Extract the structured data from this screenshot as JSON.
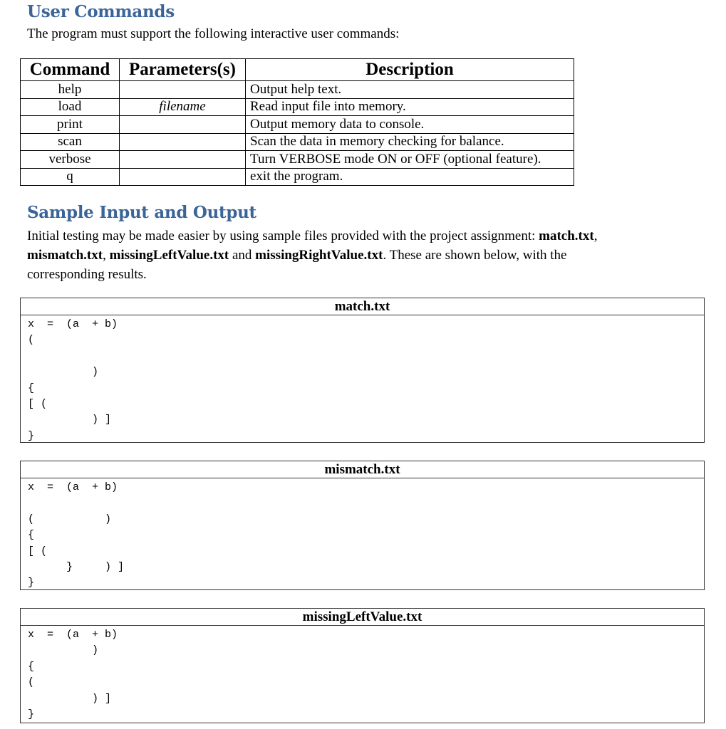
{
  "section1": {
    "heading": "User Commands",
    "intro": "The program must support the following interactive user commands:"
  },
  "table": {
    "headers": [
      "Command",
      "Parameters(s)",
      "Description"
    ],
    "rows": [
      {
        "command": "help",
        "param": "",
        "desc": "Output help text."
      },
      {
        "command": "load",
        "param": "filename",
        "desc": "Read input file into memory."
      },
      {
        "command": "print",
        "param": "",
        "desc": "Output memory data to console."
      },
      {
        "command": "scan",
        "param": "",
        "desc": "Scan the data in memory checking for balance."
      },
      {
        "command": "verbose",
        "param": "",
        "desc": "Turn VERBOSE mode ON or OFF (optional feature)."
      },
      {
        "command": "q",
        "param": "",
        "desc": "exit the program."
      }
    ]
  },
  "section2": {
    "heading": "Sample Input and Output",
    "p1": "Initial testing may be made easier by using sample files provided with the project assignment: ",
    "f1": "match.txt",
    "s1": ",",
    "f2": "mismatch.txt",
    "s2": ", ",
    "f3": "missingLeftValue.txt",
    "s3": " and ",
    "f4": "missingRightValue.txt",
    "p2": ". These are shown below, with the",
    "p3": "corresponding results."
  },
  "samples": [
    {
      "title": "match.txt",
      "lines": [
        "x  =  (a  + b)",
        "(",
        "",
        "          )",
        "{",
        "[ (",
        "          ) ]",
        "}"
      ]
    },
    {
      "title": "mismatch.txt",
      "lines": [
        "x  =  (a  + b)",
        "",
        "(           )",
        "{",
        "[ (",
        "      }     ) ]",
        "}"
      ]
    },
    {
      "title": "missingLeftValue.txt",
      "lines": [
        "x  =  (a  + b)",
        "          )",
        "{",
        "(",
        "          ) ]",
        "}"
      ]
    }
  ]
}
